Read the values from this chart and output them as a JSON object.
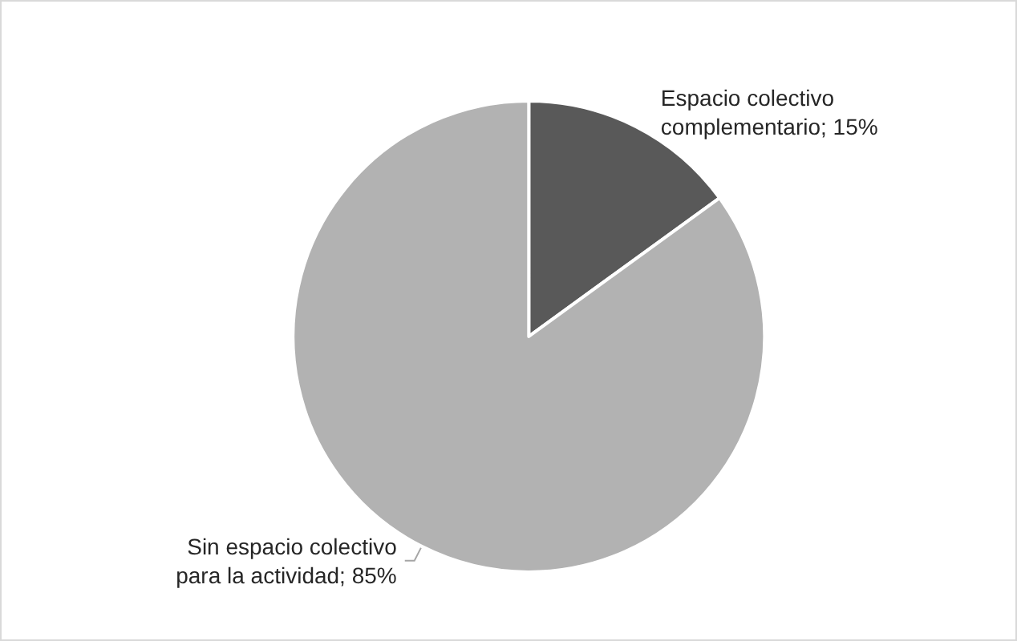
{
  "chart_data": {
    "type": "pie",
    "categories": [
      "Espacio colectivo complementario",
      "Sin espacio colectivo para la actividad"
    ],
    "values": [
      15,
      85
    ],
    "value_labels": [
      "15%",
      "85%"
    ],
    "colors": [
      "#595959",
      "#b2b2b2"
    ],
    "legend": false
  }
}
